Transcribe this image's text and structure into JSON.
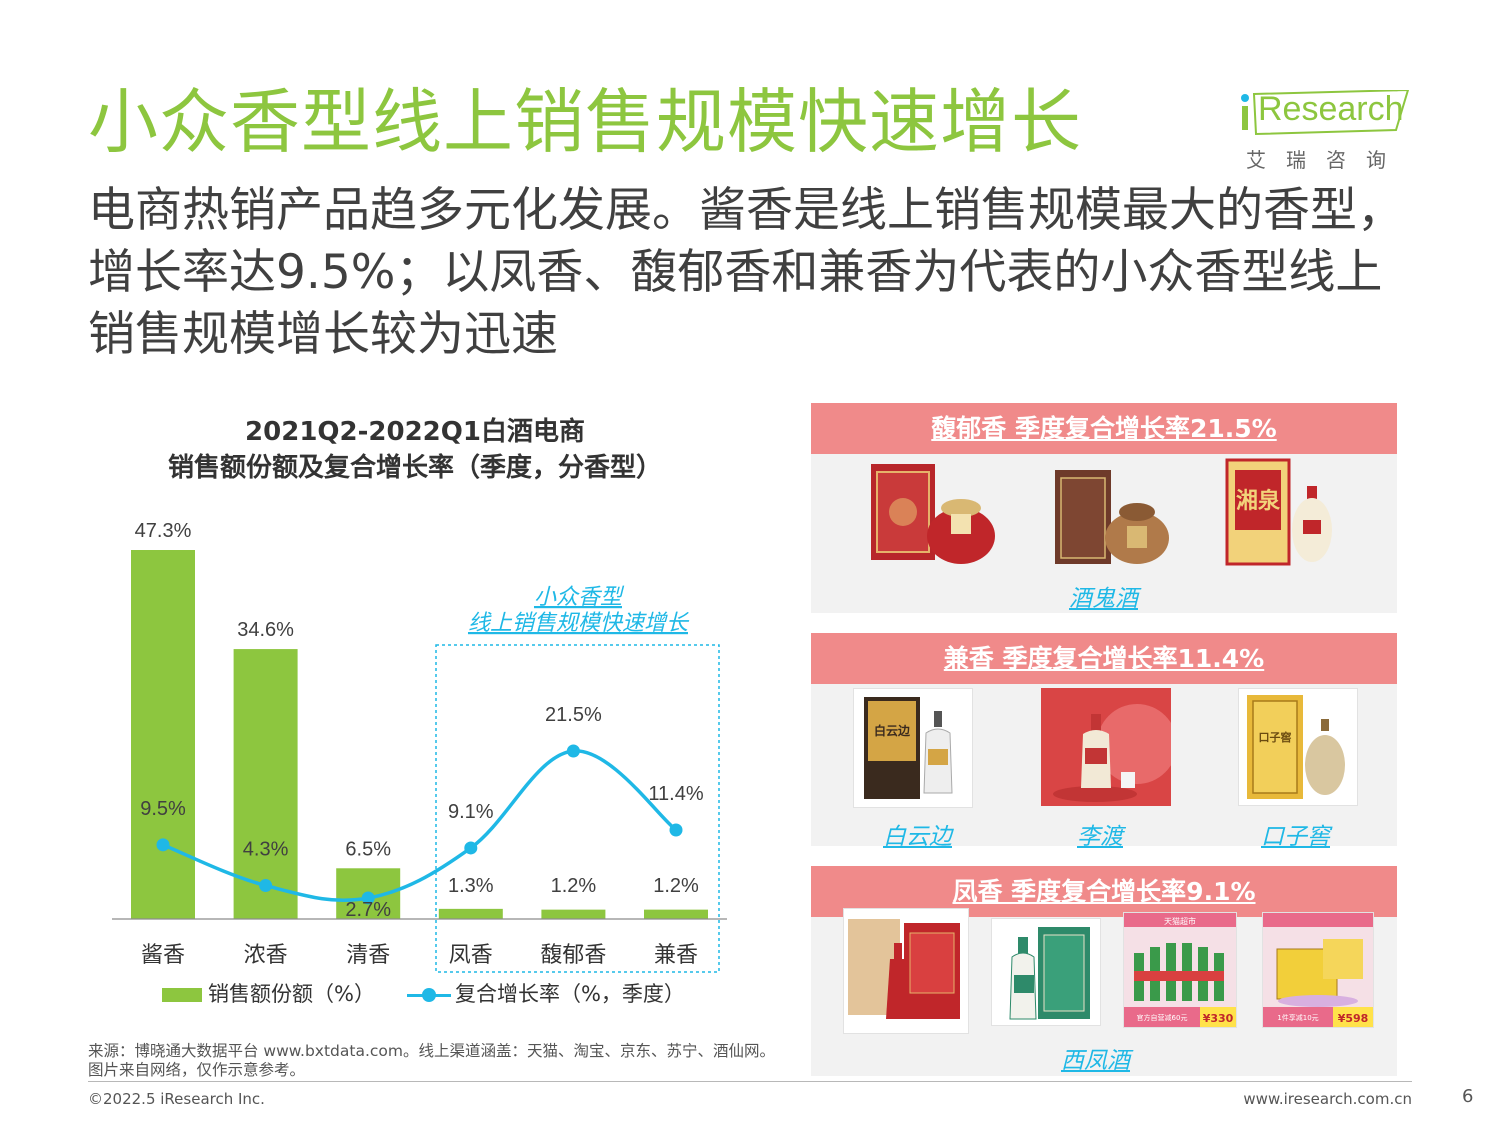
{
  "title": "小众香型线上销售规模快速增长",
  "subtitle": "电商热销产品趋多元化发展。酱香是线上销售规模最大的香型，增长率达9.5%；以凤香、馥郁香和兼香为代表的小众香型线上销售规模增长较为迅速",
  "logo": {
    "brand": "Research",
    "tagline": "艾瑞咨询"
  },
  "colors": {
    "accent_green": "#8dc63f",
    "line_blue": "#1fb8e6",
    "panel_header": "#f08a8a",
    "panel_bg": "#f2f2f2"
  },
  "chart_data": {
    "type": "bar",
    "title_line1": "2021Q2-2022Q1白酒电商",
    "title_line2": "销售额份额及复合增长率（季度，分香型）",
    "categories": [
      "酱香",
      "浓香",
      "清香",
      "凤香",
      "馥郁香",
      "兼香"
    ],
    "series": [
      {
        "name": "销售额份额（%）",
        "type": "bar",
        "values": [
          47.3,
          34.6,
          6.5,
          1.3,
          1.2,
          1.2
        ],
        "labels": [
          "47.3%",
          "34.6%",
          "6.5%",
          "1.3%",
          "1.2%",
          "1.2%"
        ]
      },
      {
        "name": "复合增长率（%，季度）",
        "type": "line",
        "values": [
          9.5,
          4.3,
          2.7,
          9.1,
          21.5,
          11.4
        ],
        "labels": [
          "9.5%",
          "4.3%",
          "2.7%",
          "9.1%",
          "21.5%",
          "11.4%"
        ]
      }
    ],
    "annotation_line1": "小众香型",
    "annotation_line2": "线上销售规模快速增长",
    "grid": false,
    "legend": "bottom"
  },
  "panels": [
    {
      "header": "馥郁香 季度复合增长率21.5%",
      "brands": [
        "酒鬼酒"
      ]
    },
    {
      "header": "兼香 季度复合增长率11.4%",
      "brands": [
        "白云边",
        "李渡",
        "口子窖"
      ]
    },
    {
      "header": "凤香 季度复合增长率9.1%",
      "brands": [
        "西凤酒"
      ]
    }
  ],
  "product_tags": {
    "xiangquan": "湘泉",
    "baiyunbian": "白云边",
    "kouzijiao": "口子窖",
    "promo1_top": "天猫超市",
    "promo1_bottom": "官方自营减60元",
    "promo1_price": "¥330",
    "promo2_bottom": "1件享减10元",
    "promo2_price": "¥598"
  },
  "source_line1": "来源：博晓通大数据平台 www.bxtdata.com。线上渠道涵盖：天猫、淘宝、京东、苏宁、酒仙网。",
  "source_line2": "图片来自网络，仅作示意参考。",
  "copyright": "©2022.5 iResearch Inc.",
  "website": "www.iresearch.com.cn",
  "page_number": "6"
}
